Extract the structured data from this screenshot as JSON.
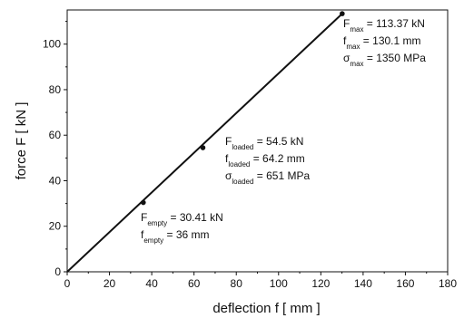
{
  "chart_data": {
    "type": "line",
    "title": "",
    "xlabel": "deflection f [ mm ]",
    "ylabel": "force F [ kN ]",
    "xlim": [
      0,
      180
    ],
    "ylim": [
      0,
      115
    ],
    "xticks": [
      "0",
      "20",
      "40",
      "60",
      "80",
      "100",
      "120",
      "140",
      "160",
      "180"
    ],
    "yticks": [
      "0",
      "20",
      "40",
      "60",
      "80",
      "100"
    ],
    "grid": false,
    "legend": "none",
    "series": [
      {
        "x": [
          0,
          130.1
        ],
        "y": [
          0,
          113.37
        ]
      }
    ],
    "points": [
      {
        "x": 36,
        "y": 30.41
      },
      {
        "x": 64.2,
        "y": 54.5
      },
      {
        "x": 130.1,
        "y": 113.37
      }
    ],
    "annotations": [
      {
        "lines": [
          {
            "base": "F",
            "sub": "max",
            "rest": " = 113.37 kN"
          },
          {
            "base": "f",
            "sub": "max",
            "rest": " = 130.1 mm"
          },
          {
            "base": "σ",
            "sub": "max",
            "rest": " = 1350 MPa"
          }
        ]
      },
      {
        "lines": [
          {
            "base": "F",
            "sub": "loaded",
            "rest": " = 54.5 kN"
          },
          {
            "base": "f",
            "sub": "loaded",
            "rest": " = 64.2 mm"
          },
          {
            "base": "σ",
            "sub": "loaded",
            "rest": " = 651 MPa"
          }
        ]
      },
      {
        "lines": [
          {
            "base": "F",
            "sub": "empty",
            "rest": " = 30.41 kN"
          },
          {
            "base": "f",
            "sub": "empty",
            "rest": " = 36 mm"
          }
        ]
      }
    ]
  }
}
